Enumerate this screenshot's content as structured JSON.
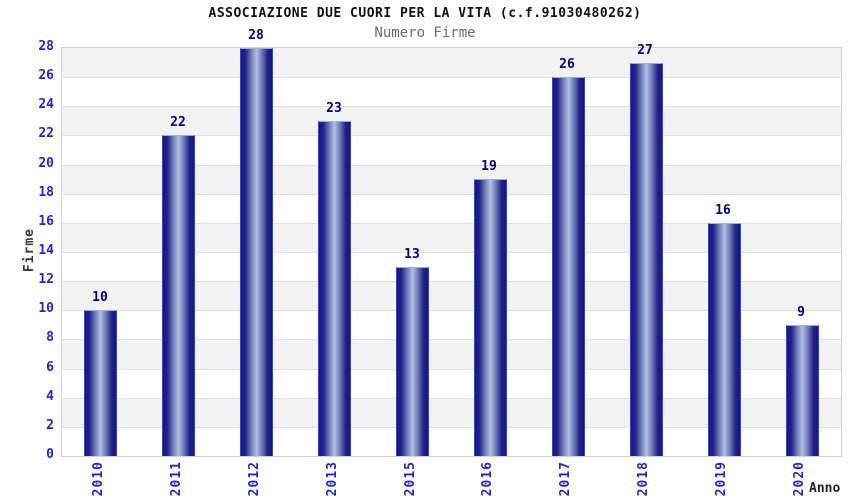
{
  "title": "ASSOCIAZIONE DUE CUORI PER LA VITA (c.f.91030480262)",
  "subtitle": "Numero Firme",
  "chart_data": {
    "type": "bar",
    "title": "ASSOCIAZIONE DUE CUORI PER LA VITA (c.f.91030480262)",
    "subtitle": "Numero Firme",
    "categories": [
      "2010",
      "2011",
      "2012",
      "2013",
      "2015",
      "2016",
      "2017",
      "2018",
      "2019",
      "2020"
    ],
    "values": [
      10,
      22,
      28,
      23,
      13,
      19,
      26,
      27,
      16,
      9
    ],
    "xlabel": "Anno",
    "ylabel": "Firme",
    "ylim": [
      0,
      28
    ],
    "ytick_step": 2,
    "yticks": [
      0,
      2,
      4,
      6,
      8,
      10,
      12,
      14,
      16,
      18,
      20,
      22,
      24,
      26,
      28
    ],
    "grid": true,
    "legend": "none",
    "colors": {
      "bar_edge_dark": "#171780",
      "bar_center_light": "#b4c0e3",
      "bar_side_border": "#2e44de",
      "bar_top_border": "#85b6f2",
      "tick_label_blue": "#2424cf",
      "value_label_navy": "#00007d",
      "axis_label_gray": "#3a3a3a",
      "band_gray": "#f2f2f2",
      "gridline_gray": "#e0e0e0",
      "plot_border_gray": "#d3d3d3",
      "title_black": "#111111",
      "subtitle_gray": "#6b6b6b"
    }
  }
}
